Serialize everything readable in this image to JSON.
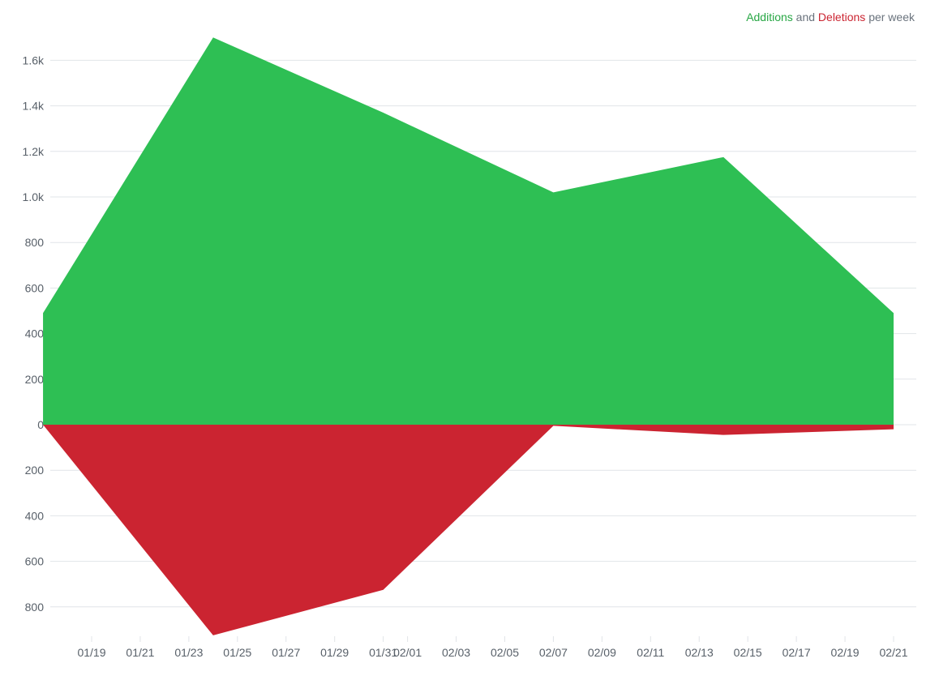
{
  "legend": {
    "additions_label": "Additions",
    "and_label": "and",
    "deletions_label": "Deletions",
    "suffix_label": "per week"
  },
  "colors": {
    "additions": "#2ebf54",
    "deletions": "#cb2431",
    "grid": "#e1e4e8",
    "axis_text": "#586069"
  },
  "chart_data": {
    "type": "area",
    "title": "",
    "xlabel": "",
    "ylabel": "",
    "x": [
      "2021-01-17",
      "2021-01-24",
      "2021-01-31",
      "2021-02-07",
      "2021-02-14",
      "2021-02-21"
    ],
    "series": [
      {
        "name": "Additions",
        "values": [
          490,
          1700,
          1370,
          1020,
          1175,
          490
        ]
      },
      {
        "name": "Deletions",
        "values": [
          0,
          925,
          725,
          5,
          45,
          20
        ]
      }
    ],
    "y_ticks_up": [
      "0",
      "200",
      "400",
      "600",
      "800",
      "1.0k",
      "1.2k",
      "1.4k",
      "1.6k"
    ],
    "y_ticks_down": [
      "200",
      "400",
      "600",
      "800"
    ],
    "x_tick_labels": [
      "01/19",
      "01/21",
      "01/23",
      "01/25",
      "01/27",
      "01/29",
      "01/31",
      "02/01",
      "02/03",
      "02/05",
      "02/07",
      "02/09",
      "02/11",
      "02/13",
      "02/15",
      "02/17",
      "02/19",
      "02/21"
    ],
    "x_tick_dates": [
      "2021-01-19",
      "2021-01-21",
      "2021-01-23",
      "2021-01-25",
      "2021-01-27",
      "2021-01-29",
      "2021-01-31",
      "2021-02-01",
      "2021-02-03",
      "2021-02-05",
      "2021-02-07",
      "2021-02-09",
      "2021-02-11",
      "2021-02-13",
      "2021-02-15",
      "2021-02-17",
      "2021-02-19",
      "2021-02-21"
    ],
    "ylim": [
      -925,
      1700
    ],
    "grid": true,
    "legend_position": "top-right"
  }
}
